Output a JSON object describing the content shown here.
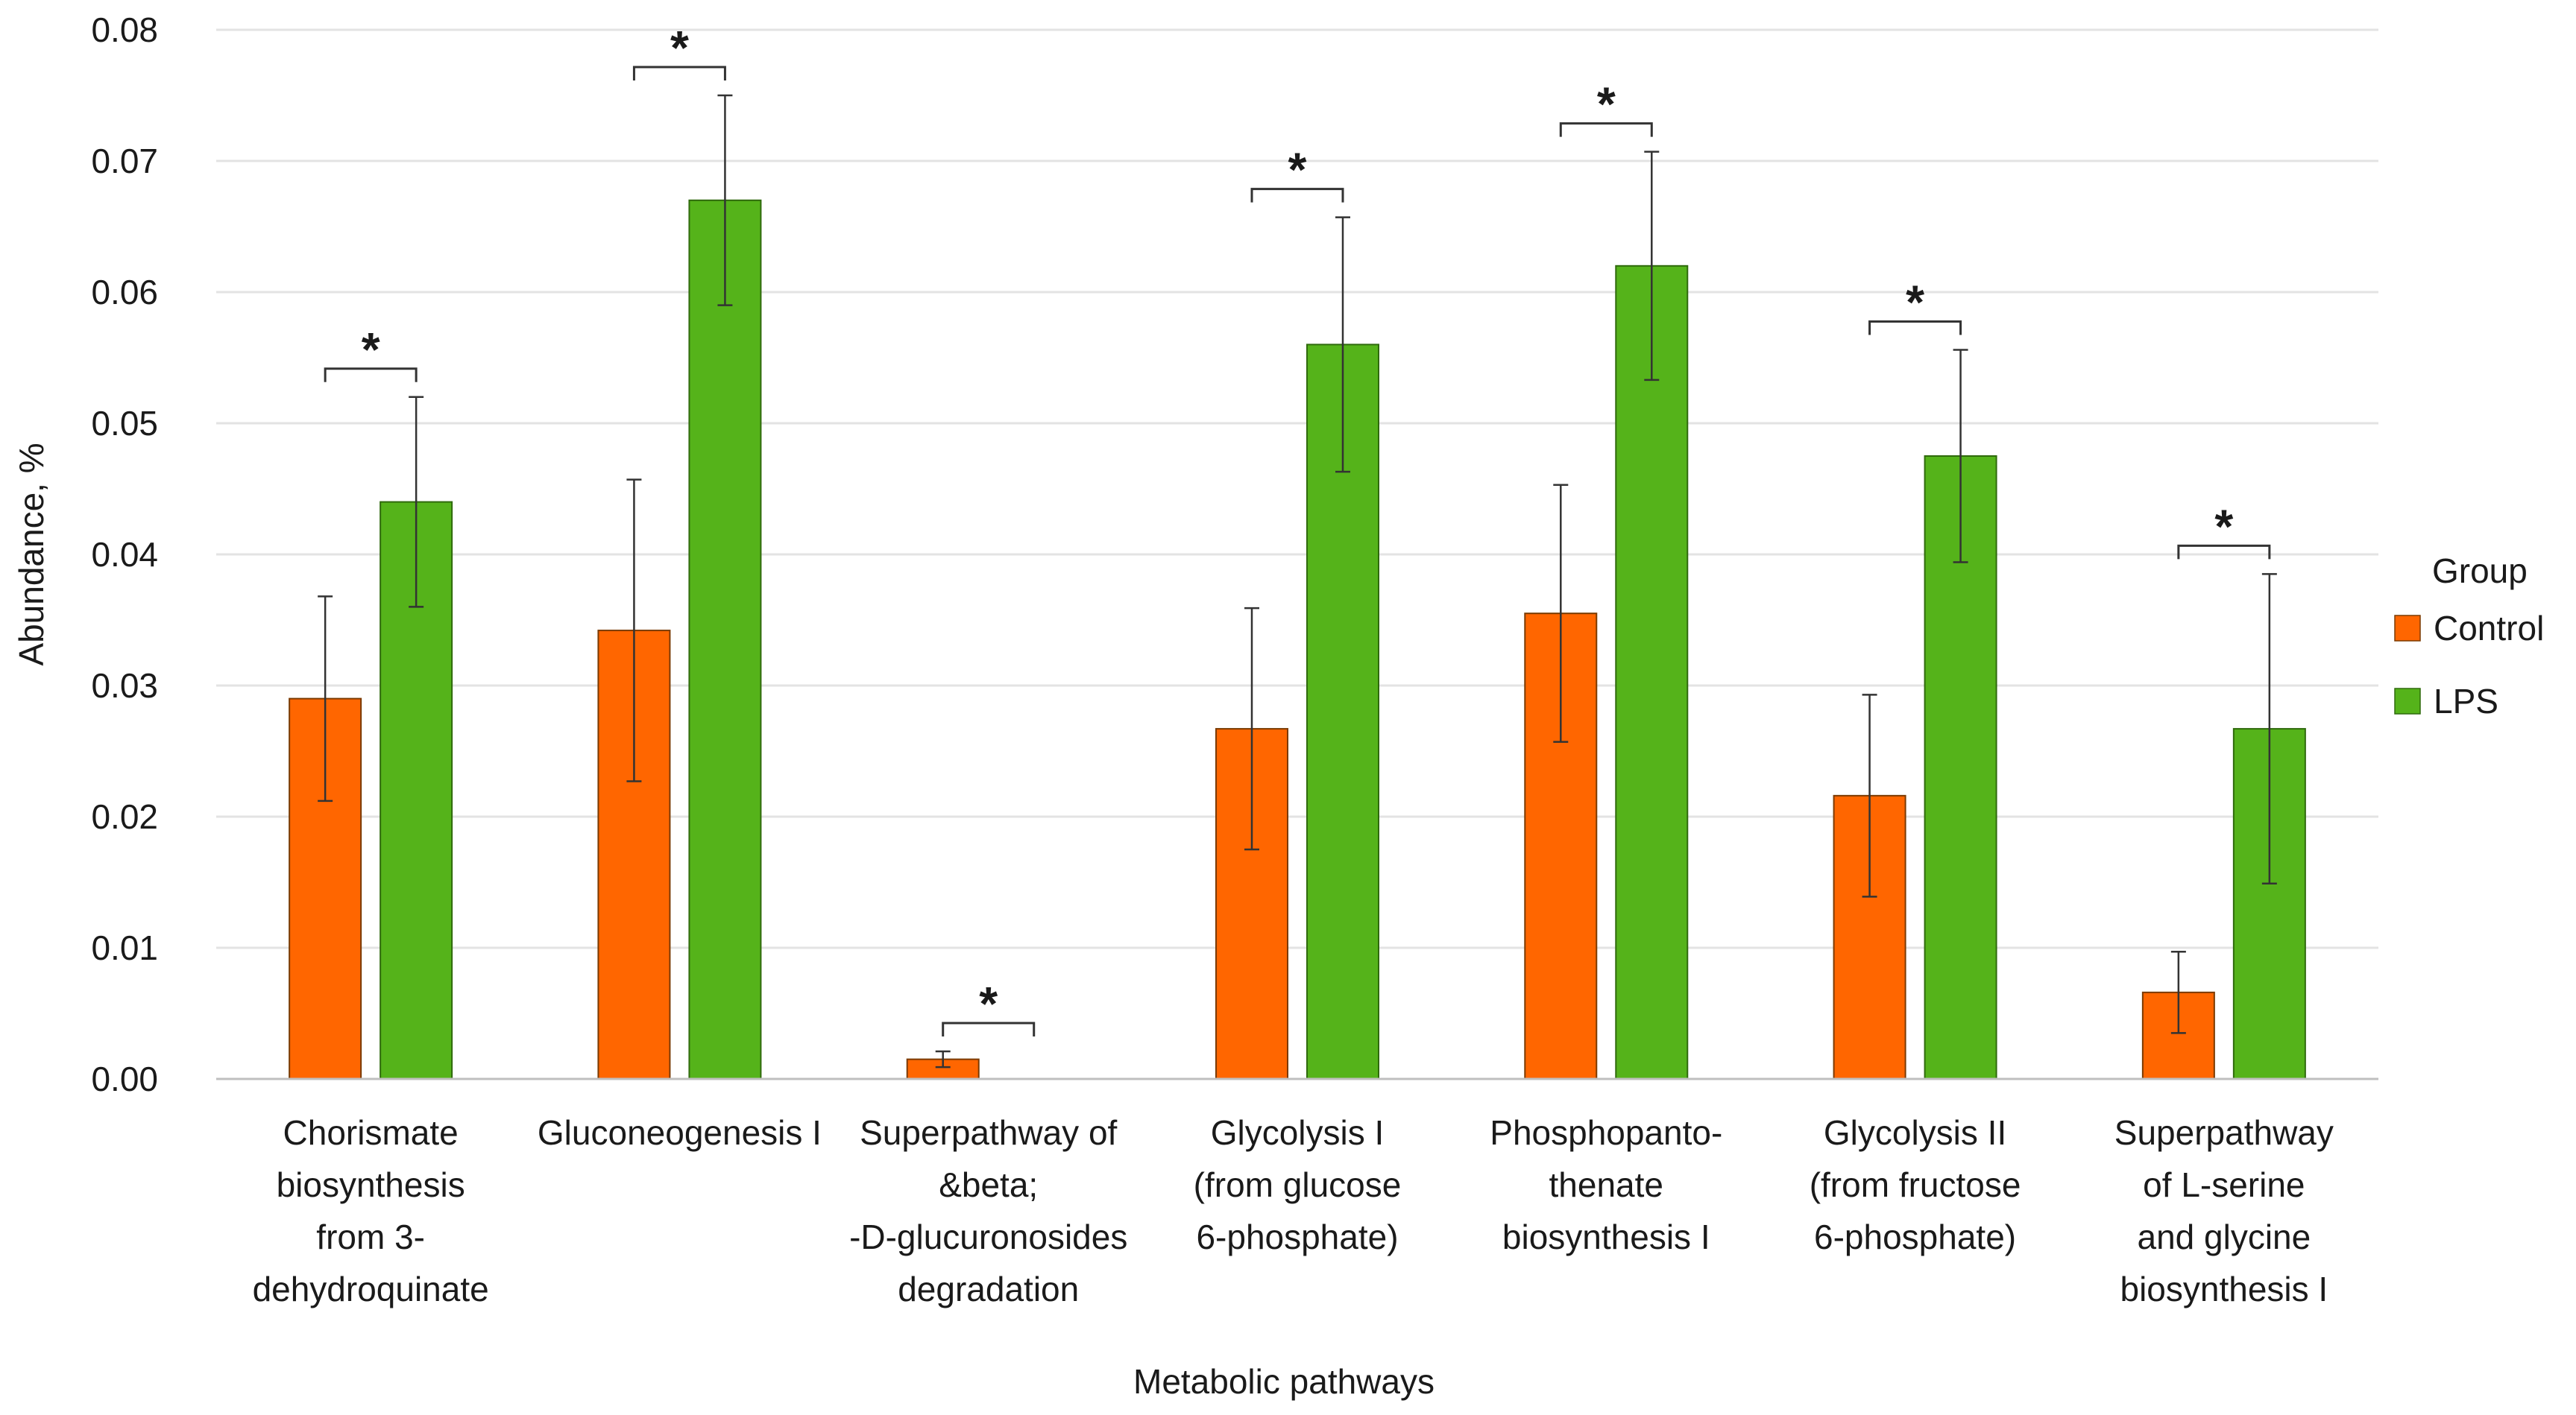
{
  "chart_data": {
    "type": "bar",
    "title": "",
    "xlabel": "Metabolic pathways",
    "ylabel": "Abundance, %",
    "ylim": [
      0,
      0.08
    ],
    "yticks": [
      "0.00",
      "0.01",
      "0.02",
      "0.03",
      "0.04",
      "0.05",
      "0.06",
      "0.07",
      "0.08"
    ],
    "grid": true,
    "legend_position": "right",
    "legend_title": "Group",
    "categories": [
      [
        "Chorismate",
        "biosynthesis",
        "from 3-",
        "dehydroquinate"
      ],
      [
        "Gluconeogenesis I"
      ],
      [
        "Superpathway of",
        "&beta;",
        "-D-glucuronosides",
        "degradation"
      ],
      [
        "Glycolysis I",
        "(from glucose",
        "6-phosphate)"
      ],
      [
        "Phosphopanto-",
        "thenate",
        "biosynthesis I"
      ],
      [
        "Glycolysis II",
        "(from fructose",
        "6-phosphate)"
      ],
      [
        "Superpathway",
        "of L-serine",
        "and glycine",
        "biosynthesis I"
      ]
    ],
    "series": [
      {
        "name": "Control",
        "color": "#ff6600",
        "values": [
          0.029,
          0.0342,
          0.0015,
          0.0267,
          0.0355,
          0.0216,
          0.0066
        ],
        "error": [
          0.0078,
          0.0115,
          0.0006,
          0.0092,
          0.0098,
          0.0077,
          0.0031
        ]
      },
      {
        "name": "LPS",
        "color": "#55b31a",
        "values": [
          0.044,
          0.067,
          null,
          0.056,
          0.062,
          0.0475,
          0.0267
        ],
        "error": [
          0.008,
          0.008,
          null,
          0.0097,
          0.0087,
          0.0081,
          0.0118
        ]
      }
    ],
    "annotations": [
      "*",
      "*",
      "*",
      "*",
      "*",
      "*",
      "*"
    ]
  }
}
